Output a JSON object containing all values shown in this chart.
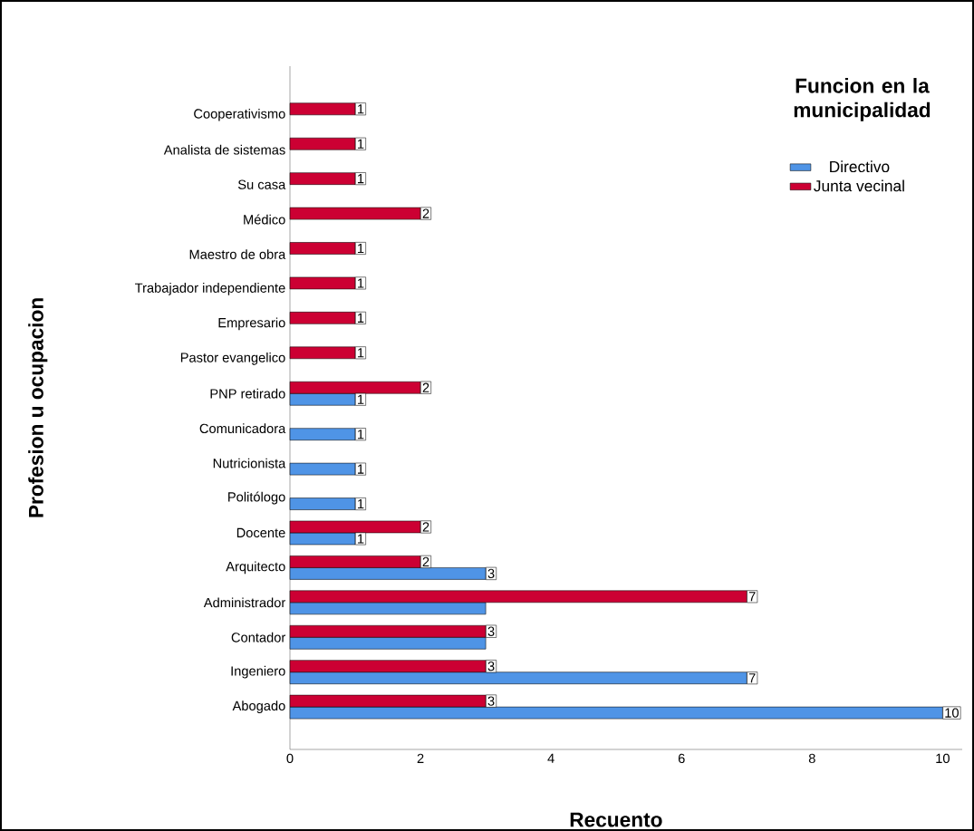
{
  "chart_data": {
    "type": "bar",
    "orientation": "horizontal",
    "xlabel": "Recuento",
    "ylabel": "Profesion u ocupacion",
    "legend_title": "Funcion en la municipalidad",
    "legend": "top right",
    "grid": false,
    "categories": [
      "Cooperativismo",
      "Analista de sistemas",
      "Su casa",
      "Médico",
      "Maestro de obra",
      "Trabajador independiente",
      "Empresario",
      "Pastor evangelico",
      "PNP retirado",
      "Comunicadora",
      "Nutricionista",
      "Politólogo",
      "Docente",
      "Arquitecto",
      "Administrador",
      "Contador",
      "Ingeniero",
      "Abogado"
    ],
    "series": [
      {
        "name": "Directivo",
        "color": "#4f94e6",
        "values": [
          null,
          null,
          null,
          null,
          null,
          null,
          null,
          null,
          1,
          1,
          1,
          1,
          1,
          3,
          3,
          3,
          7,
          10
        ],
        "value_labels": [
          null,
          null,
          null,
          null,
          null,
          null,
          null,
          null,
          "1",
          "1",
          "1",
          "1",
          "1",
          "3",
          null,
          null,
          "7",
          "10"
        ]
      },
      {
        "name": "Junta vecinal",
        "color": "#cc0033",
        "values": [
          1,
          1,
          1,
          2,
          1,
          1,
          1,
          1,
          2,
          null,
          null,
          null,
          2,
          2,
          7,
          3,
          3,
          3
        ],
        "value_labels": [
          "1",
          "1",
          "1",
          "2",
          "1",
          "1",
          "1",
          "1",
          "2",
          null,
          null,
          null,
          "2",
          "2",
          "7",
          "3",
          "3",
          "3"
        ]
      }
    ],
    "xlim": [
      0,
      10.3
    ],
    "xticks": [
      0,
      2,
      4,
      6,
      8,
      10
    ]
  }
}
